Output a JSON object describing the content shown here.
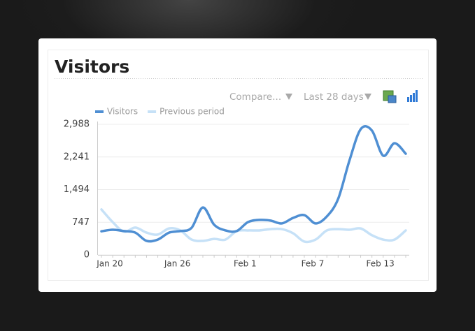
{
  "controls": {
    "compare": "Compare...",
    "range": "Last 28 days"
  },
  "chart_data": {
    "type": "line",
    "title": "Visitors",
    "categories": [
      "Jan 20",
      null,
      null,
      null,
      null,
      null,
      "Jan 26",
      null,
      null,
      null,
      null,
      null,
      "Feb 1",
      null,
      null,
      null,
      null,
      null,
      "Feb 7",
      null,
      null,
      null,
      null,
      null,
      "Feb 13",
      null,
      null,
      null
    ],
    "series": [
      {
        "name": "Visitors",
        "color": "#4f8fd3",
        "values": [
          540,
          575,
          545,
          510,
          320,
          350,
          510,
          545,
          620,
          1085,
          690,
          560,
          545,
          750,
          800,
          785,
          720,
          845,
          910,
          720,
          880,
          1280,
          2155,
          2875,
          2845,
          2270,
          2555,
          2315
        ]
      },
      {
        "name": "Previous period",
        "color": "#c6e1f7",
        "values": [
          1040,
          750,
          530,
          625,
          510,
          465,
          605,
          560,
          350,
          320,
          365,
          350,
          545,
          560,
          560,
          590,
          590,
          495,
          305,
          350,
          560,
          590,
          575,
          605,
          450,
          350,
          350,
          560
        ]
      }
    ],
    "ylim": [
      0,
      2988
    ],
    "yticks": [
      0,
      747,
      {
        "value": 1494,
        "label": "1,494"
      },
      {
        "value": 2241,
        "label": "2,241"
      },
      {
        "value": 2988,
        "label": "2,988"
      }
    ],
    "grid": true,
    "legend": "top-left"
  }
}
